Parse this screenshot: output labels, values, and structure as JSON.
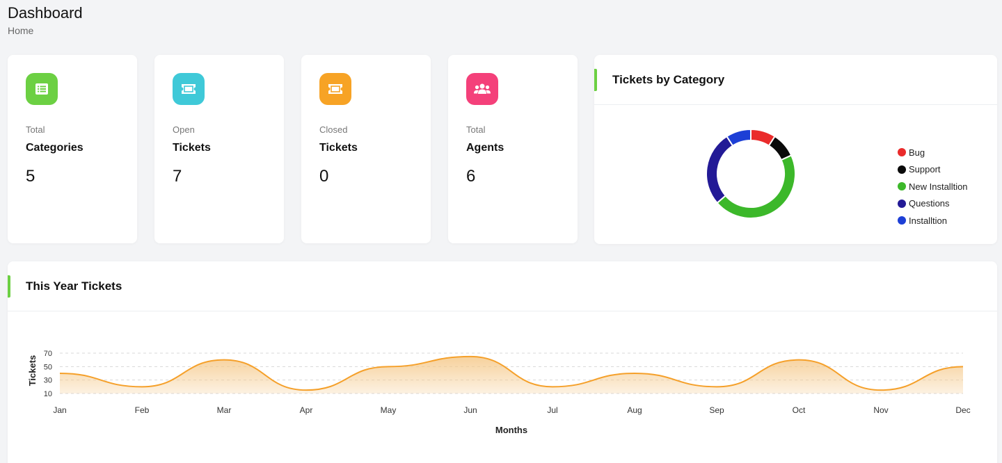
{
  "header": {
    "title": "Dashboard",
    "breadcrumb": "Home"
  },
  "stats": [
    {
      "sub": "Total",
      "label": "Categories",
      "value": "5",
      "color": "#6cd043",
      "icon": "list-icon"
    },
    {
      "sub": "Open",
      "label": "Tickets",
      "value": "7",
      "color": "#3fc9d8",
      "icon": "ticket-icon"
    },
    {
      "sub": "Closed",
      "label": "Tickets",
      "value": "0",
      "color": "#f7a325",
      "icon": "ticket-icon"
    },
    {
      "sub": "Total",
      "label": "Agents",
      "value": "6",
      "color": "#f4407a",
      "icon": "users-icon"
    }
  ],
  "category_panel": {
    "title": "Tickets by Category"
  },
  "year_panel": {
    "title": "This Year Tickets"
  },
  "chart_data": [
    {
      "type": "pie",
      "style": "doughnut",
      "legend_position": "right",
      "labels": [
        "Bug",
        "Support",
        "New Installtion",
        "Questions",
        "Installtion"
      ],
      "values": [
        1,
        1,
        5,
        3,
        1
      ],
      "colors": [
        "#ea2b2b",
        "#0a0a0a",
        "#3cb82a",
        "#231a96",
        "#1d3fd6"
      ]
    },
    {
      "type": "area",
      "categories": [
        "Jan",
        "Feb",
        "Mar",
        "Apr",
        "May",
        "Jun",
        "Jul",
        "Aug",
        "Sep",
        "Oct",
        "Nov",
        "Dec"
      ],
      "series": [
        {
          "values": [
            40,
            20,
            60,
            15,
            50,
            65,
            20,
            40,
            20,
            60,
            15,
            50
          ]
        }
      ],
      "xlabel": "Months",
      "ylabel": "Tickets",
      "yticks": [
        10,
        30,
        50,
        70
      ],
      "ylim": [
        10,
        70
      ],
      "grid": true,
      "line_color": "#f5a02a",
      "fill_color": "#f5c98a"
    }
  ]
}
